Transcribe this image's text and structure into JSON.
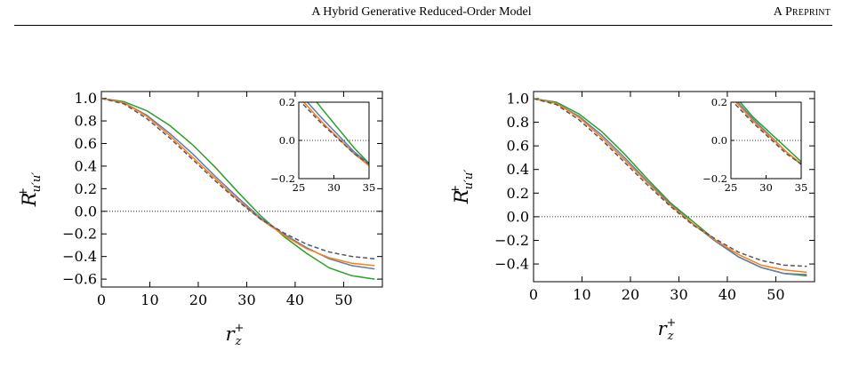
{
  "header": {
    "title": "A Hybrid Generative Reduced-Order Model",
    "right": "A Preprint"
  },
  "chart_data": [
    {
      "type": "line",
      "xlabel": "r_z^+",
      "ylabel": "R^+_{u'u'}",
      "xlim": [
        0,
        58
      ],
      "ylim": [
        -0.67,
        1.06
      ],
      "xticks": [
        0,
        10,
        20,
        30,
        40,
        50
      ],
      "yticks": [
        1.0,
        0.8,
        0.6,
        0.4,
        0.2,
        0.0,
        -0.2,
        -0.4,
        -0.6
      ],
      "ytick_labels": [
        "1.0",
        "0.8",
        "0.6",
        "0.4",
        "0.2",
        "0.0",
        "−0.2",
        "−0.4",
        "−0.6"
      ],
      "xtick_labels": [
        "0",
        "10",
        "20",
        "30",
        "40",
        "50"
      ],
      "reference_line": 0,
      "series": [
        {
          "color": "#2ca02c",
          "style": "solid",
          "x": [
            0,
            4.7,
            9.4,
            14.1,
            18.8,
            23.5,
            28.2,
            32.9,
            37.6,
            42.3,
            47,
            51.7,
            56.4
          ],
          "y": [
            1.0,
            0.97,
            0.89,
            0.76,
            0.59,
            0.39,
            0.17,
            -0.04,
            -0.22,
            -0.37,
            -0.5,
            -0.57,
            -0.6
          ]
        },
        {
          "color": "#5b7db8",
          "style": "solid",
          "x": [
            0,
            4.7,
            9.4,
            14.1,
            18.8,
            23.5,
            28.2,
            32.9,
            37.6,
            42.3,
            47,
            51.7,
            56.4
          ],
          "y": [
            1.0,
            0.96,
            0.85,
            0.69,
            0.51,
            0.31,
            0.12,
            -0.06,
            -0.2,
            -0.32,
            -0.42,
            -0.48,
            -0.51
          ]
        },
        {
          "color": "#ff7f0e",
          "style": "solid",
          "x": [
            0,
            4.7,
            9.4,
            14.1,
            18.8,
            23.5,
            28.2,
            32.9,
            37.6,
            42.3,
            47,
            51.7,
            56.4
          ],
          "y": [
            1.0,
            0.96,
            0.84,
            0.67,
            0.48,
            0.29,
            0.1,
            -0.07,
            -0.21,
            -0.33,
            -0.41,
            -0.46,
            -0.48
          ]
        },
        {
          "color": "#555566",
          "style": "dashed",
          "x": [
            0,
            4.7,
            9.4,
            14.1,
            18.8,
            23.5,
            28.2,
            32.9,
            37.6,
            42.3,
            47,
            51.7,
            56.4
          ],
          "y": [
            1.0,
            0.95,
            0.82,
            0.65,
            0.46,
            0.27,
            0.09,
            -0.07,
            -0.19,
            -0.29,
            -0.36,
            -0.4,
            -0.42
          ]
        }
      ],
      "inset": {
        "xlim": [
          25,
          35
        ],
        "ylim": [
          -0.2,
          0.2
        ],
        "xticks": [
          25,
          30,
          35
        ],
        "yticks": [
          0.2,
          0.0,
          -0.2
        ],
        "xtick_labels": [
          "25",
          "30",
          "35"
        ],
        "ytick_labels": [
          "0.2",
          "0.0",
          "−0.2"
        ]
      }
    },
    {
      "type": "line",
      "xlabel": "r_z^+",
      "ylabel": "R^+_{u'u'}",
      "xlim": [
        0,
        58
      ],
      "ylim": [
        -0.55,
        1.06
      ],
      "xticks": [
        0,
        10,
        20,
        30,
        40,
        50
      ],
      "yticks": [
        1.0,
        0.8,
        0.6,
        0.4,
        0.2,
        0.0,
        -0.2,
        -0.4
      ],
      "ytick_labels": [
        "1.0",
        "0.8",
        "0.6",
        "0.4",
        "0.2",
        "0.0",
        "−0.2",
        "−0.4"
      ],
      "xtick_labels": [
        "0",
        "10",
        "20",
        "30",
        "40",
        "50"
      ],
      "reference_line": 0,
      "series": [
        {
          "color": "#2ca02c",
          "style": "solid",
          "x": [
            0,
            4.7,
            9.4,
            14.1,
            18.8,
            23.5,
            28.2,
            32.9,
            37.6,
            42.3,
            47,
            51.7,
            56.4
          ],
          "y": [
            1.0,
            0.97,
            0.87,
            0.72,
            0.53,
            0.32,
            0.12,
            -0.04,
            -0.2,
            -0.34,
            -0.43,
            -0.48,
            -0.5
          ]
        },
        {
          "color": "#5b7db8",
          "style": "solid",
          "x": [
            0,
            4.7,
            9.4,
            14.1,
            18.8,
            23.5,
            28.2,
            32.9,
            37.6,
            42.3,
            47,
            51.7,
            56.4
          ],
          "y": [
            1.0,
            0.96,
            0.85,
            0.69,
            0.5,
            0.3,
            0.11,
            -0.06,
            -0.21,
            -0.34,
            -0.43,
            -0.48,
            -0.49
          ]
        },
        {
          "color": "#ff7f0e",
          "style": "solid",
          "x": [
            0,
            4.7,
            9.4,
            14.1,
            18.8,
            23.5,
            28.2,
            32.9,
            37.6,
            42.3,
            47,
            51.7,
            56.4
          ],
          "y": [
            1.0,
            0.96,
            0.84,
            0.67,
            0.48,
            0.29,
            0.1,
            -0.06,
            -0.2,
            -0.32,
            -0.41,
            -0.45,
            -0.47
          ]
        },
        {
          "color": "#555566",
          "style": "dashed",
          "x": [
            0,
            4.7,
            9.4,
            14.1,
            18.8,
            23.5,
            28.2,
            32.9,
            37.6,
            42.3,
            47,
            51.7,
            56.4
          ],
          "y": [
            1.0,
            0.95,
            0.82,
            0.65,
            0.46,
            0.27,
            0.09,
            -0.07,
            -0.19,
            -0.3,
            -0.37,
            -0.41,
            -0.42
          ]
        }
      ],
      "inset": {
        "xlim": [
          25,
          35
        ],
        "ylim": [
          -0.2,
          0.2
        ],
        "xticks": [
          25,
          30,
          35
        ],
        "yticks": [
          0.2,
          0.0,
          -0.2
        ],
        "xtick_labels": [
          "25",
          "30",
          "35"
        ],
        "ytick_labels": [
          "0.2",
          "0.0",
          "−0.2"
        ]
      }
    }
  ]
}
